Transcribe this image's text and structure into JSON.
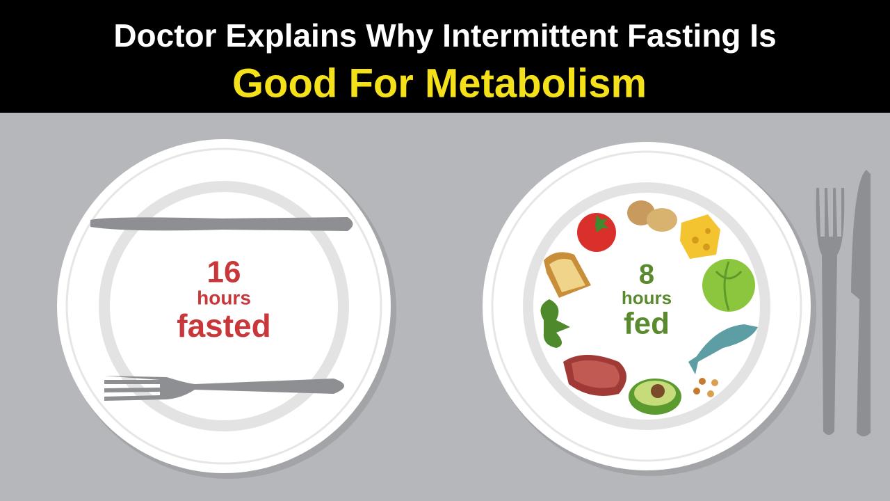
{
  "header": {
    "line1": "Doctor Explains Why Intermittent Fasting Is",
    "line2": "Good For Metabolism"
  },
  "left_plate": {
    "number": "16",
    "unit": "hours",
    "label": "fasted"
  },
  "right_plate": {
    "number": "8",
    "unit": "hours",
    "label": "fed"
  }
}
